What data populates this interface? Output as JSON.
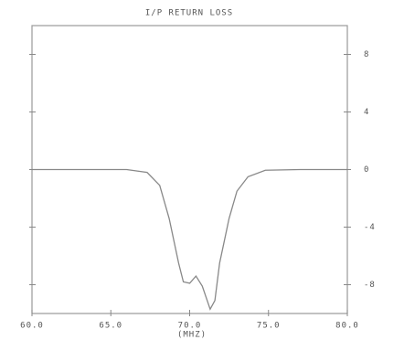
{
  "chart_data": {
    "type": "line",
    "title": "I/P RETURN LOSS",
    "x_label": "(MHZ)",
    "x": [
      60,
      62,
      64,
      66,
      67.3,
      68.1,
      68.7,
      69.3,
      69.6,
      70.0,
      70.4,
      70.8,
      71.3,
      71.6,
      71.9,
      72.5,
      73.0,
      73.7,
      74.8,
      77,
      80
    ],
    "series": [
      {
        "color": "#888888",
        "values": [
          0,
          0,
          0,
          0,
          -0.2,
          -1.1,
          -3.4,
          -6.5,
          -7.8,
          -7.9,
          -7.4,
          -8.1,
          -9.7,
          -9.1,
          -6.5,
          -3.4,
          -1.5,
          -0.5,
          -0.05,
          0,
          0
        ]
      }
    ],
    "xlim": [
      60,
      80
    ],
    "xticks": [
      {
        "value": 60,
        "label": "60.0"
      },
      {
        "value": 65,
        "label": "65.0"
      },
      {
        "value": 70,
        "label": "70.0"
      },
      {
        "value": 75,
        "label": "75.0"
      },
      {
        "value": 80,
        "label": "80.0"
      }
    ],
    "ylim": [
      -10,
      10
    ],
    "yticks": [
      8,
      4,
      0,
      -4,
      -8
    ],
    "y_axis_side": "right"
  }
}
